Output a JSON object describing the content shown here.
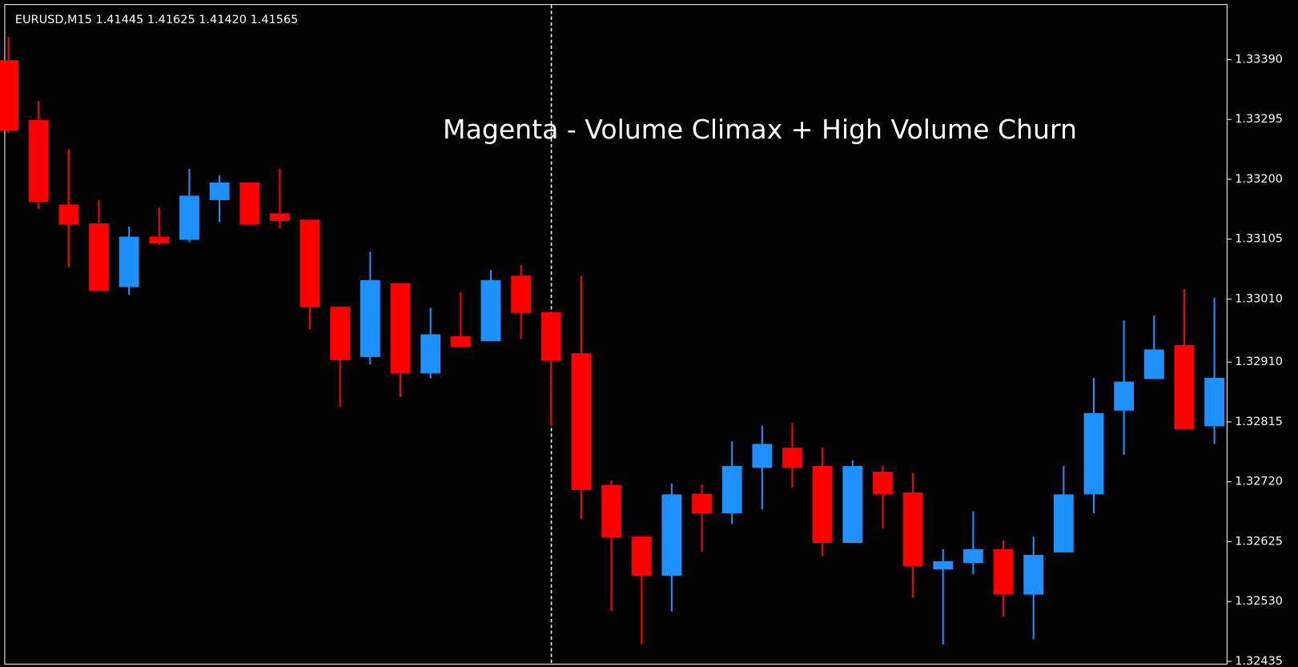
{
  "chart_data": {
    "type": "candlestick",
    "header": "EURUSD,M15  1.41445 1.41625 1.41420 1.41565",
    "annotation": "Magenta - Volume Climax + High Volume Churn",
    "up_color": "#1e90ff",
    "down_color": "#ff0000",
    "categories": [
      null,
      null,
      null,
      null,
      null,
      null,
      null,
      null,
      null,
      null,
      null,
      null,
      null,
      null,
      null,
      null,
      null,
      null,
      null,
      null,
      null,
      null,
      null,
      null,
      null,
      null,
      null,
      null,
      null,
      null,
      null,
      null,
      null,
      null,
      null,
      null,
      null,
      null,
      null,
      null,
      null
    ],
    "open": [
      1.33389,
      1.33294,
      1.3316,
      1.3313,
      1.33029,
      1.33109,
      1.33104,
      1.33167,
      1.33195,
      1.33146,
      1.33136,
      1.32998,
      1.32918,
      1.33035,
      1.32892,
      1.32951,
      1.32943,
      1.33047,
      1.32989,
      1.32924,
      1.32715,
      1.32633,
      1.32571,
      1.32701,
      1.3267,
      1.32742,
      1.32774,
      1.32745,
      1.32623,
      1.32736,
      1.32703,
      1.32581,
      1.32591,
      1.32613,
      1.32541,
      1.32608,
      1.327,
      1.32833,
      1.32883,
      1.32937,
      1.32808
    ],
    "high": [
      1.33426,
      1.33324,
      1.33248,
      1.33167,
      1.33125,
      1.33155,
      1.33217,
      1.33206,
      1.33195,
      1.33217,
      1.33136,
      1.32998,
      1.33085,
      1.33035,
      1.32996,
      1.33021,
      1.33056,
      1.33064,
      1.32989,
      1.33047,
      1.32722,
      1.32633,
      1.32717,
      1.32716,
      1.32784,
      1.32809,
      1.32813,
      1.32774,
      1.32754,
      1.32745,
      1.32734,
      1.32613,
      1.32673,
      1.32627,
      1.32633,
      1.32745,
      1.32885,
      1.32976,
      1.32984,
      1.33026,
      1.33012
    ],
    "low": [
      1.33274,
      1.33153,
      1.33061,
      1.33023,
      1.33017,
      1.33096,
      1.331,
      1.33132,
      1.33128,
      1.33122,
      1.32962,
      1.32839,
      1.32906,
      1.32855,
      1.32884,
      1.32933,
      1.32943,
      1.32947,
      1.32808,
      1.32661,
      1.32515,
      1.32462,
      1.32514,
      1.32609,
      1.32653,
      1.32676,
      1.32711,
      1.32602,
      1.32623,
      1.32646,
      1.32536,
      1.32462,
      1.32573,
      1.32506,
      1.3247,
      1.32608,
      1.3267,
      1.32763,
      1.32883,
      1.32803,
      1.3278
    ],
    "close": [
      1.33277,
      1.33164,
      1.33128,
      1.33023,
      1.33109,
      1.33098,
      1.33174,
      1.33195,
      1.33128,
      1.33134,
      1.32997,
      1.32913,
      1.3304,
      1.32892,
      1.32954,
      1.32934,
      1.3304,
      1.32988,
      1.32912,
      1.32707,
      1.32632,
      1.32571,
      1.327,
      1.3267,
      1.32745,
      1.3278,
      1.32742,
      1.32623,
      1.32745,
      1.327,
      1.32586,
      1.32594,
      1.32613,
      1.32541,
      1.32604,
      1.327,
      1.32829,
      1.32879,
      1.3293,
      1.32803,
      1.32885
    ],
    "ylim": [
      1.3243,
      1.33478
    ],
    "yticks": [
      {
        "value": 1.3339,
        "label": "1.33390"
      },
      {
        "value": 1.33295,
        "label": "1.33295"
      },
      {
        "value": 1.332,
        "label": "1.33200"
      },
      {
        "value": 1.33105,
        "label": "1.33105"
      },
      {
        "value": 1.3301,
        "label": "1.33010"
      },
      {
        "value": 1.3291,
        "label": "1.32910"
      },
      {
        "value": 1.32815,
        "label": "1.32815"
      },
      {
        "value": 1.3272,
        "label": "1.32720"
      },
      {
        "value": 1.32625,
        "label": "1.32625"
      },
      {
        "value": 1.3253,
        "label": "1.32530"
      },
      {
        "value": 1.32435,
        "label": "1.32435"
      }
    ]
  }
}
